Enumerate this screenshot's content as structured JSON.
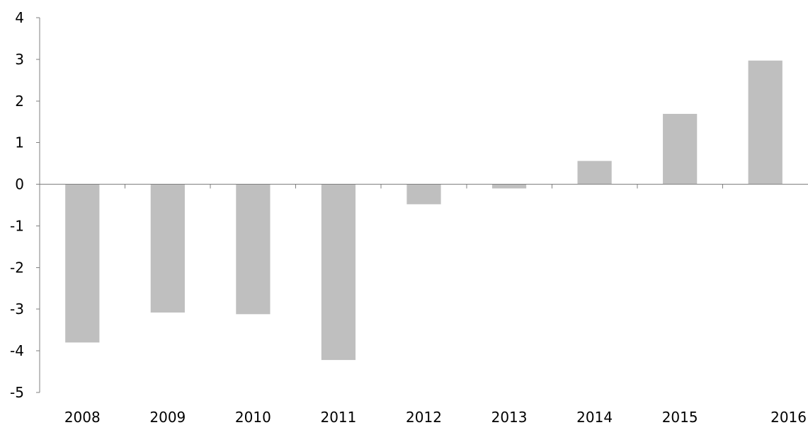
{
  "chart_data": {
    "type": "bar",
    "categories": [
      "2008",
      "2009",
      "2010",
      "2011",
      "2012",
      "2013",
      "2014",
      "2015",
      "2016"
    ],
    "values": [
      -3.8,
      -3.08,
      -3.12,
      -4.22,
      -0.48,
      -0.1,
      0.56,
      1.69,
      2.97
    ],
    "title": "",
    "xlabel": "",
    "ylabel": "",
    "ylim": [
      -5,
      4
    ],
    "yticks": [
      "-5",
      "-4",
      "-3",
      "-2",
      "-1",
      "0",
      "1",
      "2",
      "3",
      "4"
    ],
    "grid": false,
    "legend": "none",
    "colors": {
      "bar": "#bfbfbf",
      "axis": "#7f7f7f",
      "text": "#000000"
    }
  }
}
